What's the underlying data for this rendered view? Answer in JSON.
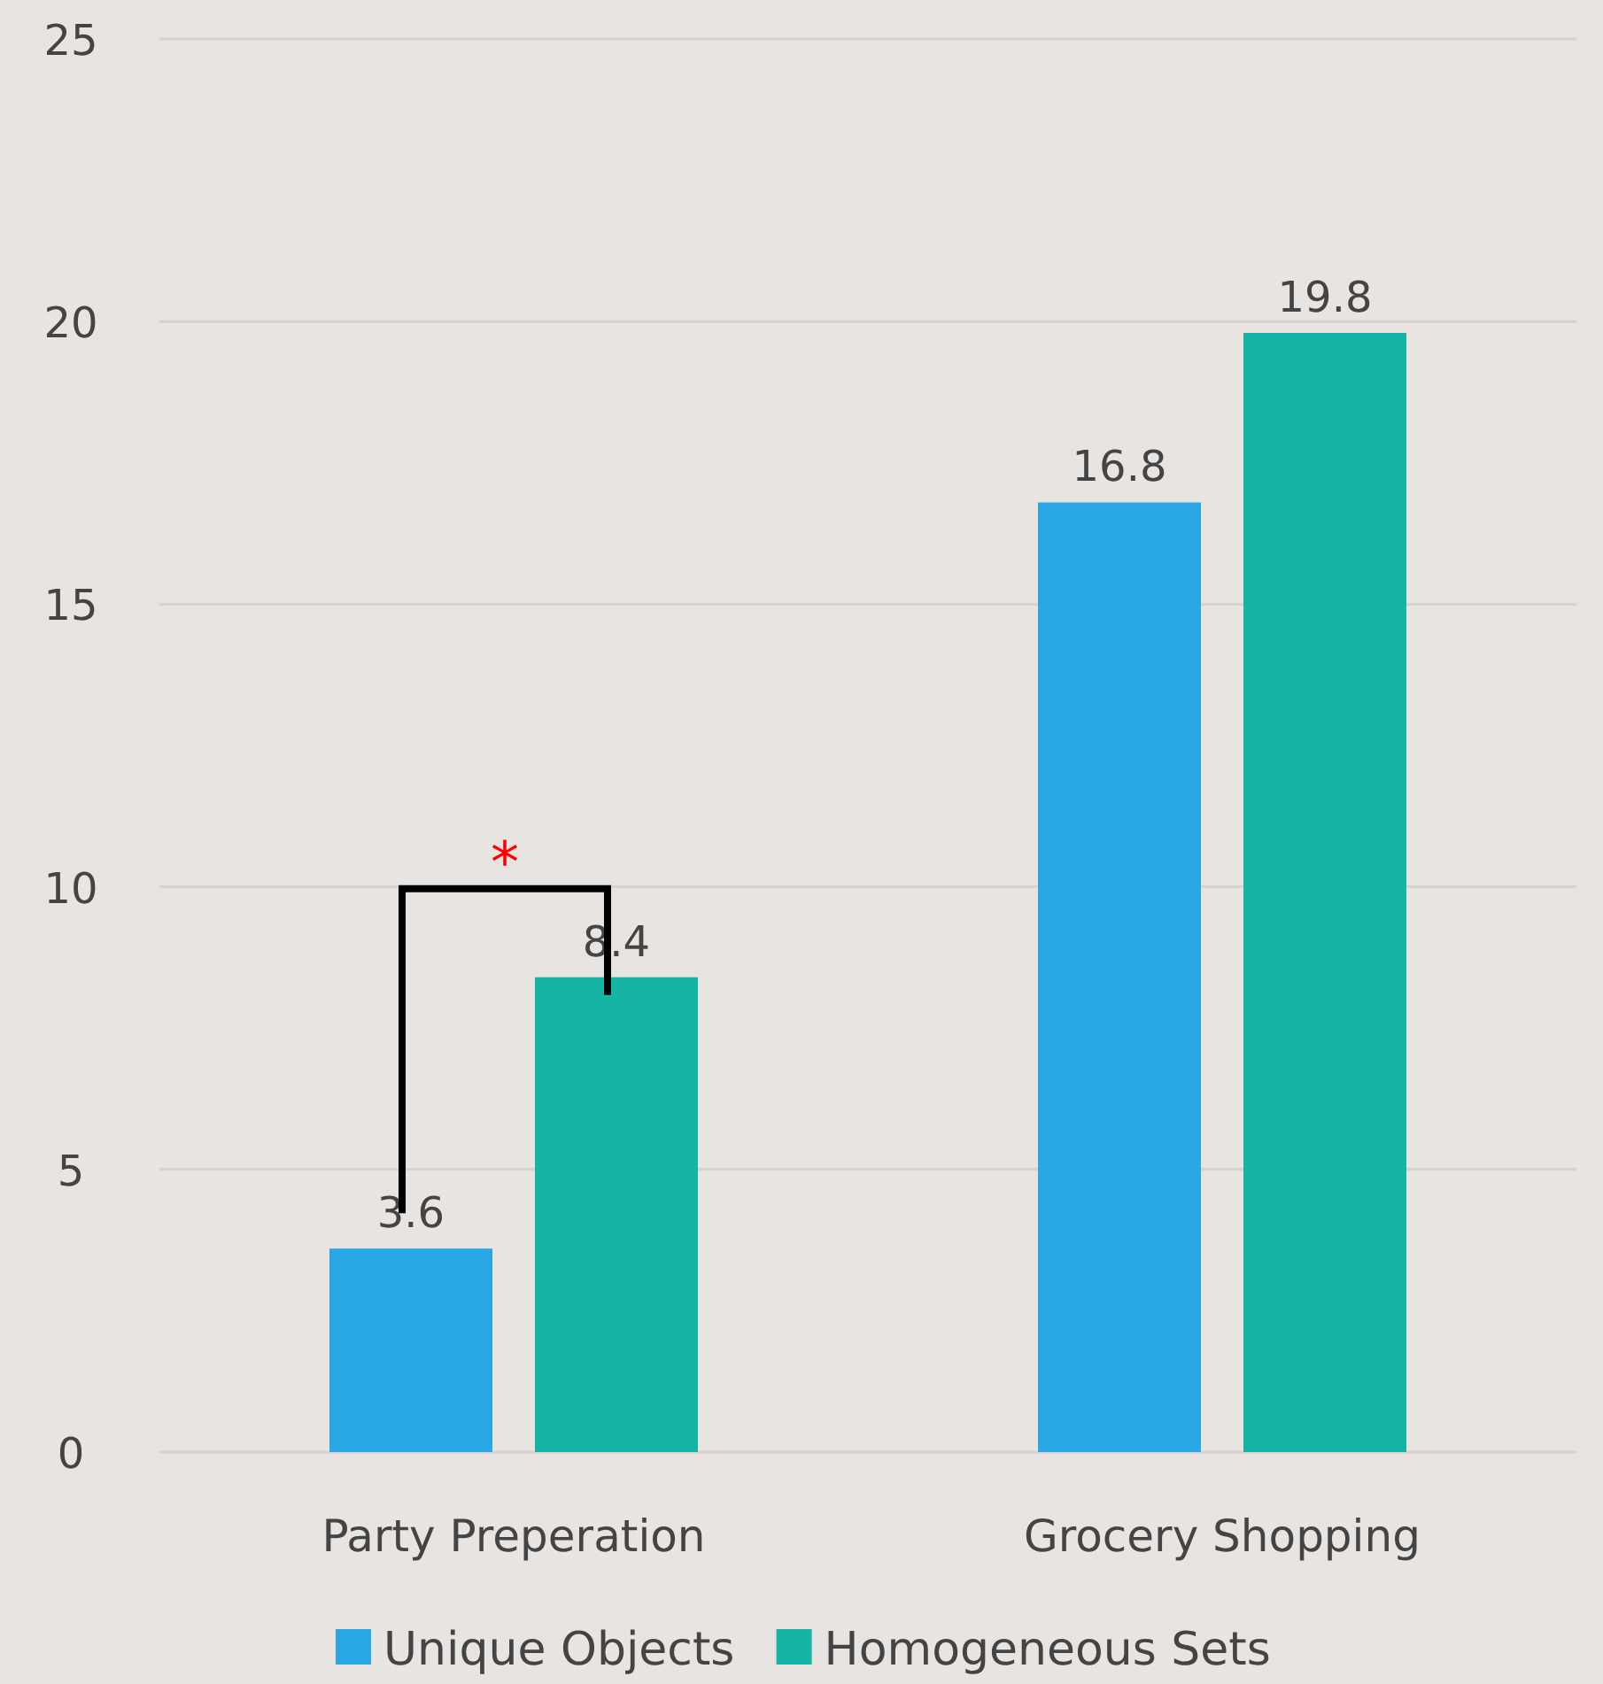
{
  "chart_data": {
    "type": "bar",
    "categories": [
      "Party Preperation",
      "Grocery Shopping"
    ],
    "series": [
      {
        "name": "Unique Objects",
        "color": "#29a8e5",
        "values": [
          3.6,
          16.8
        ]
      },
      {
        "name": "Homogeneous Sets",
        "color": "#14b5a5",
        "values": [
          8.4,
          19.8
        ]
      }
    ],
    "ylim": [
      0,
      25
    ],
    "yticks": [
      0,
      5,
      10,
      15,
      20,
      25
    ],
    "grid": "y",
    "legend": "bottom",
    "data_labels": true,
    "annotations": [
      "*"
    ]
  }
}
